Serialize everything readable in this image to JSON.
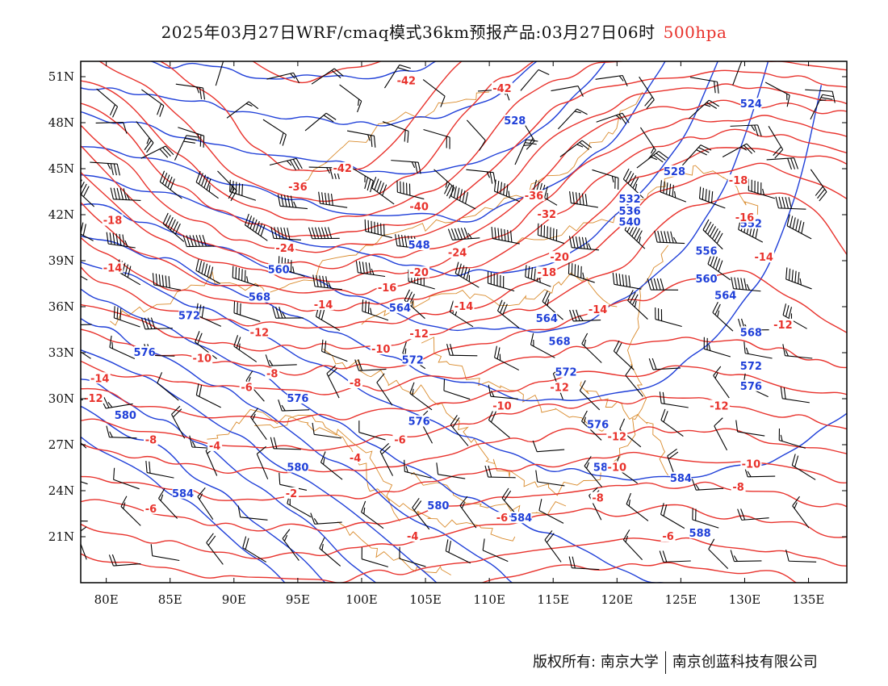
{
  "title": {
    "main": "2025年03月27日WRF/cmaq模式36km预报产品:03月27日06时",
    "level": "500hpa"
  },
  "axes": {
    "lat_labels": [
      "51N",
      "48N",
      "45N",
      "42N",
      "39N",
      "36N",
      "33N",
      "30N",
      "27N",
      "24N",
      "21N"
    ],
    "lat_values": [
      51,
      48,
      45,
      42,
      39,
      36,
      33,
      30,
      27,
      24,
      21
    ],
    "lon_labels": [
      "80E",
      "85E",
      "90E",
      "95E",
      "100E",
      "105E",
      "110E",
      "115E",
      "120E",
      "125E",
      "130E",
      "135E"
    ],
    "lon_values": [
      80,
      85,
      90,
      95,
      100,
      105,
      110,
      115,
      120,
      125,
      130,
      135
    ],
    "lon_range": [
      78,
      138
    ],
    "lat_range": [
      18,
      52
    ]
  },
  "colors": {
    "temperature": "#e8322c",
    "height": "#1f3fd8",
    "border": "#d98a2b",
    "wind": "#000000"
  },
  "temperature_labels": [
    {
      "text": "-42",
      "lon": 103.5,
      "lat": 50.7
    },
    {
      "text": "-42",
      "lon": 111.0,
      "lat": 50.2
    },
    {
      "text": "-42",
      "lon": 98.5,
      "lat": 45.0
    },
    {
      "text": "-36",
      "lon": 95.0,
      "lat": 43.8
    },
    {
      "text": "-40",
      "lon": 104.5,
      "lat": 42.5
    },
    {
      "text": "-36",
      "lon": 113.5,
      "lat": 43.2
    },
    {
      "text": "-32",
      "lon": 114.5,
      "lat": 42.0
    },
    {
      "text": "-18",
      "lon": 80.5,
      "lat": 41.6
    },
    {
      "text": "-24",
      "lon": 94.0,
      "lat": 39.8
    },
    {
      "text": "-24",
      "lon": 107.5,
      "lat": 39.5
    },
    {
      "text": "-20",
      "lon": 104.5,
      "lat": 38.2
    },
    {
      "text": "-20",
      "lon": 115.5,
      "lat": 39.2
    },
    {
      "text": "-18",
      "lon": 114.5,
      "lat": 38.2
    },
    {
      "text": "-18",
      "lon": 129.5,
      "lat": 44.2
    },
    {
      "text": "-16",
      "lon": 130.0,
      "lat": 41.8
    },
    {
      "text": "-14",
      "lon": 80.5,
      "lat": 38.5
    },
    {
      "text": "-16",
      "lon": 102.0,
      "lat": 37.2
    },
    {
      "text": "-14",
      "lon": 97.0,
      "lat": 36.1
    },
    {
      "text": "-14",
      "lon": 108.0,
      "lat": 36.0
    },
    {
      "text": "-14",
      "lon": 118.5,
      "lat": 35.8
    },
    {
      "text": "-14",
      "lon": 131.5,
      "lat": 39.2
    },
    {
      "text": "-12",
      "lon": 92.0,
      "lat": 34.3
    },
    {
      "text": "-12",
      "lon": 104.5,
      "lat": 34.2
    },
    {
      "text": "-12",
      "lon": 133.0,
      "lat": 34.8
    },
    {
      "text": "-10",
      "lon": 87.5,
      "lat": 32.6
    },
    {
      "text": "-10",
      "lon": 101.5,
      "lat": 33.2
    },
    {
      "text": "-8",
      "lon": 93.0,
      "lat": 31.6
    },
    {
      "text": "-8",
      "lon": 99.5,
      "lat": 31.0
    },
    {
      "text": "-6",
      "lon": 91.0,
      "lat": 30.7
    },
    {
      "text": "-14",
      "lon": 79.5,
      "lat": 31.3
    },
    {
      "text": "-12",
      "lon": 79.0,
      "lat": 30.0
    },
    {
      "text": "-10",
      "lon": 111.0,
      "lat": 29.5
    },
    {
      "text": "-12",
      "lon": 115.5,
      "lat": 30.7
    },
    {
      "text": "-12",
      "lon": 128.0,
      "lat": 29.5
    },
    {
      "text": "-8",
      "lon": 83.5,
      "lat": 27.3
    },
    {
      "text": "-4",
      "lon": 88.5,
      "lat": 26.9
    },
    {
      "text": "-6",
      "lon": 103.0,
      "lat": 27.3
    },
    {
      "text": "-12",
      "lon": 120.0,
      "lat": 27.5
    },
    {
      "text": "-10",
      "lon": 120.0,
      "lat": 25.5
    },
    {
      "text": "-10",
      "lon": 130.5,
      "lat": 25.7
    },
    {
      "text": "-4",
      "lon": 99.5,
      "lat": 26.1
    },
    {
      "text": "-8",
      "lon": 129.5,
      "lat": 24.2
    },
    {
      "text": "-8",
      "lon": 118.5,
      "lat": 23.5
    },
    {
      "text": "-6",
      "lon": 83.5,
      "lat": 22.8
    },
    {
      "text": "-2",
      "lon": 94.5,
      "lat": 23.8
    },
    {
      "text": "-6",
      "lon": 111.0,
      "lat": 22.2
    },
    {
      "text": "-4",
      "lon": 104.0,
      "lat": 21.0
    },
    {
      "text": "-6",
      "lon": 124.0,
      "lat": 21.0
    }
  ],
  "height_labels": [
    {
      "text": "528",
      "lon": 112.0,
      "lat": 48.1
    },
    {
      "text": "524",
      "lon": 130.5,
      "lat": 49.2
    },
    {
      "text": "528",
      "lon": 124.5,
      "lat": 44.8
    },
    {
      "text": "532",
      "lon": 121.0,
      "lat": 43.0
    },
    {
      "text": "536",
      "lon": 121.0,
      "lat": 42.2
    },
    {
      "text": "540",
      "lon": 121.0,
      "lat": 41.5
    },
    {
      "text": "548",
      "lon": 104.5,
      "lat": 40.0
    },
    {
      "text": "552",
      "lon": 130.5,
      "lat": 41.4
    },
    {
      "text": "556",
      "lon": 127.0,
      "lat": 39.6
    },
    {
      "text": "560",
      "lon": 93.5,
      "lat": 38.4
    },
    {
      "text": "560",
      "lon": 127.0,
      "lat": 37.8
    },
    {
      "text": "564",
      "lon": 103.0,
      "lat": 35.9
    },
    {
      "text": "564",
      "lon": 114.5,
      "lat": 35.2
    },
    {
      "text": "564",
      "lon": 128.5,
      "lat": 36.7
    },
    {
      "text": "568",
      "lon": 92.0,
      "lat": 36.6
    },
    {
      "text": "568",
      "lon": 115.5,
      "lat": 33.7
    },
    {
      "text": "568",
      "lon": 130.5,
      "lat": 34.3
    },
    {
      "text": "572",
      "lon": 86.5,
      "lat": 35.4
    },
    {
      "text": "572",
      "lon": 104.0,
      "lat": 32.5
    },
    {
      "text": "572",
      "lon": 116.0,
      "lat": 31.7
    },
    {
      "text": "572",
      "lon": 130.5,
      "lat": 32.1
    },
    {
      "text": "576",
      "lon": 83.0,
      "lat": 33.0
    },
    {
      "text": "576",
      "lon": 95.0,
      "lat": 30.0
    },
    {
      "text": "576",
      "lon": 104.5,
      "lat": 28.5
    },
    {
      "text": "576",
      "lon": 118.5,
      "lat": 28.3
    },
    {
      "text": "576",
      "lon": 130.5,
      "lat": 30.8
    },
    {
      "text": "580",
      "lon": 81.5,
      "lat": 28.9
    },
    {
      "text": "580",
      "lon": 95.0,
      "lat": 25.5
    },
    {
      "text": "580",
      "lon": 106.0,
      "lat": 23.0
    },
    {
      "text": "580",
      "lon": 119.0,
      "lat": 25.5
    },
    {
      "text": "584",
      "lon": 86.0,
      "lat": 23.8
    },
    {
      "text": "584",
      "lon": 112.5,
      "lat": 22.2
    },
    {
      "text": "584",
      "lon": 125.0,
      "lat": 24.8
    },
    {
      "text": "588",
      "lon": 126.5,
      "lat": 21.2
    }
  ],
  "footer": {
    "left": "版权所有: 南京大学",
    "right": "南京创蓝科技有限公司"
  }
}
